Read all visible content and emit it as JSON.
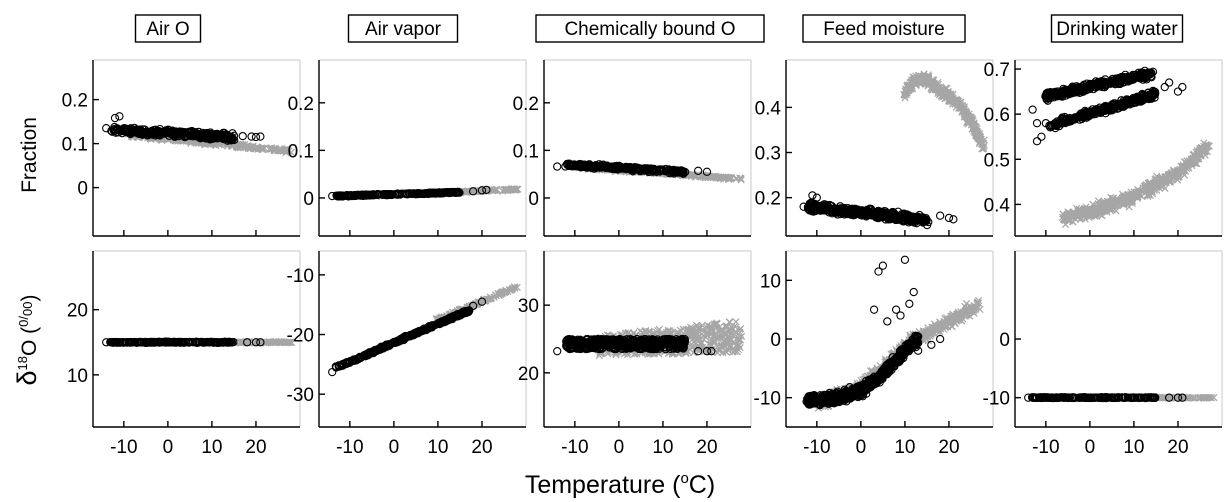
{
  "figure": {
    "xlabel": "Temperature (",
    "xlabel_sup": "o",
    "xlabel_unit": "C)",
    "ylabel_top": "Fraction",
    "ylabel_bottom_main": "δ",
    "ylabel_bottom_sup": "18",
    "ylabel_bottom_o": "O (",
    "ylabel_bottom_frac_num": "0",
    "ylabel_bottom_frac_den": "00",
    "ylabel_bottom_close": ")",
    "colors": {
      "observed": "#000000",
      "projected": "#a6a6a6"
    },
    "markers": {
      "observed": "circle",
      "projected": "cross"
    }
  },
  "chart_data": [
    {
      "type": "scatter",
      "title": "Air O",
      "row": "Fraction",
      "xlim": [
        -17,
        30
      ],
      "ylim": [
        -0.11,
        0.29
      ],
      "xticks": [
        -10,
        0,
        10,
        20
      ],
      "yticks": [
        0,
        0.1,
        0.2
      ],
      "ytick_labels": [
        "0",
        "0.1",
        "0.2"
      ],
      "shapes": [
        {
          "series": "projected",
          "kind": "line",
          "x0": -8,
          "x1": 28,
          "y0": 0.118,
          "y1": 0.083,
          "spread": 0.006,
          "n": 240
        },
        {
          "series": "observed",
          "kind": "line",
          "x0": -13,
          "x1": 15,
          "y0": 0.133,
          "y1": 0.113,
          "spread": 0.012,
          "n": 320
        },
        {
          "series": "observed",
          "kind": "list",
          "points": [
            [
              -14,
              0.135
            ],
            [
              17,
              0.117
            ],
            [
              19,
              0.116
            ],
            [
              20,
              0.115
            ],
            [
              -12,
              0.158
            ],
            [
              -11,
              0.162
            ],
            [
              21,
              0.116
            ]
          ]
        }
      ]
    },
    {
      "type": "scatter",
      "title": "Air O",
      "row": "δ18O",
      "xlim": [
        -17,
        30
      ],
      "ylim": [
        2,
        29
      ],
      "xticks": [
        -10,
        0,
        10,
        20
      ],
      "yticks": [
        10,
        20
      ],
      "ytick_labels": [
        "10",
        "20"
      ],
      "shapes": [
        {
          "series": "projected",
          "kind": "line",
          "x0": -8,
          "x1": 28,
          "y0": 15,
          "y1": 15,
          "spread": 0.15,
          "n": 200
        },
        {
          "series": "observed",
          "kind": "line",
          "x0": -13,
          "x1": 15,
          "y0": 15,
          "y1": 15,
          "spread": 0.12,
          "n": 200
        },
        {
          "series": "observed",
          "kind": "list",
          "points": [
            [
              -14,
              15
            ],
            [
              18,
              15
            ],
            [
              20,
              15
            ],
            [
              21,
              15
            ]
          ]
        }
      ]
    },
    {
      "type": "scatter",
      "title": "Air vapor",
      "row": "Fraction",
      "xlim": [
        -17,
        30
      ],
      "ylim": [
        -0.08,
        0.29
      ],
      "xticks": [
        -10,
        0,
        10,
        20
      ],
      "yticks": [
        0,
        0.1,
        0.2
      ],
      "ytick_labels": [
        "0",
        "0.1",
        "0.2"
      ],
      "shapes": [
        {
          "series": "projected",
          "kind": "line",
          "x0": -8,
          "x1": 28,
          "y0": 0.004,
          "y1": 0.018,
          "spread": 0.003,
          "n": 220
        },
        {
          "series": "observed",
          "kind": "line",
          "x0": -13,
          "x1": 15,
          "y0": 0.004,
          "y1": 0.012,
          "spread": 0.002,
          "n": 260
        },
        {
          "series": "observed",
          "kind": "list",
          "points": [
            [
              -14,
              0.004
            ],
            [
              18,
              0.014
            ],
            [
              20,
              0.016
            ],
            [
              21,
              0.017
            ]
          ]
        }
      ]
    },
    {
      "type": "scatter",
      "title": "Air vapor",
      "row": "δ18O",
      "xlim": [
        -17,
        30
      ],
      "ylim": [
        -35.5,
        -6
      ],
      "xticks": [
        -10,
        0,
        10,
        20
      ],
      "yticks": [
        -30,
        -20,
        -10
      ],
      "ytick_labels": [
        "-30",
        "-20",
        "-10"
      ],
      "shapes": [
        {
          "series": "projected",
          "kind": "line",
          "x0": 10,
          "x1": 28,
          "y0": -17.5,
          "y1": -12,
          "spread": 0.3,
          "n": 120
        },
        {
          "series": "observed",
          "kind": "line",
          "x0": -13,
          "x1": 17,
          "y0": -25.5,
          "y1": -16,
          "spread": 0.25,
          "n": 320
        },
        {
          "series": "observed",
          "kind": "list",
          "points": [
            [
              -14,
              -26.3
            ],
            [
              18,
              -15.2
            ],
            [
              20,
              -14.5
            ]
          ]
        }
      ]
    },
    {
      "type": "scatter",
      "title": "Chemically bound O",
      "row": "Fraction",
      "xlim": [
        -17,
        30
      ],
      "ylim": [
        -0.08,
        0.29
      ],
      "xticks": [
        -10,
        0,
        10,
        20
      ],
      "yticks": [
        0,
        0.1,
        0.2
      ],
      "ytick_labels": [
        "0",
        "0.1",
        "0.2"
      ],
      "shapes": [
        {
          "series": "projected",
          "kind": "line",
          "x0": -8,
          "x1": 28,
          "y0": 0.064,
          "y1": 0.04,
          "spread": 0.004,
          "n": 220
        },
        {
          "series": "observed",
          "kind": "line",
          "x0": -12,
          "x1": 15,
          "y0": 0.07,
          "y1": 0.055,
          "spread": 0.006,
          "n": 300
        },
        {
          "series": "observed",
          "kind": "list",
          "points": [
            [
              -14,
              0.066
            ],
            [
              18,
              0.057
            ],
            [
              20,
              0.055
            ]
          ]
        }
      ]
    },
    {
      "type": "scatter",
      "title": "Chemically bound O",
      "row": "δ18O",
      "xlim": [
        -17,
        30
      ],
      "ylim": [
        12,
        38
      ],
      "xticks": [
        -10,
        0,
        10,
        20
      ],
      "yticks": [
        20,
        30
      ],
      "ytick_labels": [
        "20",
        "30"
      ],
      "shapes": [
        {
          "series": "projected",
          "kind": "band",
          "x0": -5,
          "x1": 28,
          "ya0": 22.5,
          "yb0": 25.5,
          "ya1": 23,
          "yb1": 27.8,
          "n": 520
        },
        {
          "series": "observed",
          "kind": "rect",
          "x0": -12,
          "x1": 15,
          "y0": 23.5,
          "y1": 25,
          "n": 480
        },
        {
          "series": "observed",
          "kind": "list",
          "points": [
            [
              -14,
              23.2
            ],
            [
              18,
              23.2
            ],
            [
              20,
              23.2
            ],
            [
              21,
              23.2
            ]
          ]
        }
      ]
    },
    {
      "type": "scatter",
      "title": "Feed moisture",
      "row": "Fraction",
      "xlim": [
        -17,
        30
      ],
      "ylim": [
        0.115,
        0.505
      ],
      "xticks": [
        -10,
        0,
        10,
        20
      ],
      "yticks": [
        0.2,
        0.3,
        0.4
      ],
      "ytick_labels": [
        "0.2",
        "0.3",
        "0.4"
      ],
      "shapes": [
        {
          "series": "projected",
          "kind": "curve",
          "pts": [
            [
              10,
              0.43
            ],
            [
              12,
              0.46
            ],
            [
              15,
              0.46
            ],
            [
              18,
              0.44
            ],
            [
              22,
              0.41
            ],
            [
              25,
              0.37
            ],
            [
              28,
              0.31
            ]
          ],
          "spread": 0.018,
          "n": 420
        },
        {
          "series": "observed",
          "kind": "line",
          "x0": -12,
          "x1": 15,
          "y0": 0.18,
          "y1": 0.15,
          "spread": 0.013,
          "n": 460
        },
        {
          "series": "observed",
          "kind": "list",
          "points": [
            [
              -13,
              0.18
            ],
            [
              -11,
              0.205
            ],
            [
              -10,
              0.2
            ],
            [
              18,
              0.16
            ],
            [
              20,
              0.155
            ],
            [
              21,
              0.152
            ]
          ]
        }
      ]
    },
    {
      "type": "scatter",
      "title": "Feed moisture",
      "row": "δ18O",
      "xlim": [
        -17,
        30
      ],
      "ylim": [
        -15,
        15
      ],
      "xticks": [
        -10,
        0,
        10,
        20
      ],
      "yticks": [
        -10,
        0,
        10
      ],
      "ytick_labels": [
        "-10",
        "0",
        "10"
      ],
      "shapes": [
        {
          "series": "projected",
          "kind": "curve",
          "pts": [
            [
              -10,
              -11
            ],
            [
              0,
              -8
            ],
            [
              5,
              -5
            ],
            [
              10,
              -1
            ],
            [
              15,
              1
            ],
            [
              20,
              3
            ],
            [
              27,
              6
            ]
          ],
          "spread": 1.5,
          "n": 520
        },
        {
          "series": "observed",
          "kind": "curve",
          "pts": [
            [
              -12,
              -10.5
            ],
            [
              -5,
              -10
            ],
            [
              0,
              -8.8
            ],
            [
              5,
              -6
            ],
            [
              10,
              -2
            ],
            [
              13,
              0
            ]
          ],
          "spread": 1.3,
          "n": 760
        },
        {
          "series": "observed",
          "kind": "list",
          "points": [
            [
              4,
              11.5
            ],
            [
              5,
              12.5
            ],
            [
              10,
              13.5
            ],
            [
              8,
              5
            ],
            [
              12,
              8
            ],
            [
              9,
              4
            ],
            [
              11,
              6
            ],
            [
              6,
              3
            ],
            [
              13,
              -2
            ],
            [
              16,
              -1
            ],
            [
              18,
              0
            ],
            [
              3,
              5
            ]
          ]
        }
      ]
    },
    {
      "type": "scatter",
      "title": "Drinking water",
      "row": "Fraction",
      "xlim": [
        -17,
        30
      ],
      "ylim": [
        0.33,
        0.72
      ],
      "xticks": [
        -10,
        0,
        10,
        20
      ],
      "yticks": [
        0.4,
        0.5,
        0.6,
        0.7
      ],
      "ytick_labels": [
        "0.4",
        "0.5",
        "0.6",
        "0.7"
      ],
      "shapes": [
        {
          "series": "projected",
          "kind": "curve",
          "pts": [
            [
              -6,
              0.37
            ],
            [
              -2,
              0.38
            ],
            [
              2,
              0.39
            ],
            [
              8,
              0.41
            ],
            [
              14,
              0.44
            ],
            [
              20,
              0.47
            ],
            [
              27,
              0.53
            ]
          ],
          "spread": 0.022,
          "n": 520
        },
        {
          "series": "observed",
          "kind": "line",
          "x0": -10,
          "x1": 14,
          "y0": 0.64,
          "y1": 0.69,
          "spread": 0.012,
          "n": 330
        },
        {
          "series": "observed",
          "kind": "line",
          "x0": -9,
          "x1": 15,
          "y0": 0.575,
          "y1": 0.645,
          "spread": 0.012,
          "n": 280
        },
        {
          "series": "observed",
          "kind": "list",
          "points": [
            [
              -13,
              0.61
            ],
            [
              -12,
              0.54
            ],
            [
              -11,
              0.55
            ],
            [
              -12,
              0.58
            ],
            [
              17,
              0.66
            ],
            [
              18,
              0.67
            ],
            [
              20,
              0.65
            ],
            [
              21,
              0.66
            ],
            [
              -10,
              0.58
            ]
          ]
        }
      ]
    },
    {
      "type": "scatter",
      "title": "Drinking water",
      "row": "δ18O",
      "xlim": [
        -17,
        30
      ],
      "ylim": [
        -15,
        15
      ],
      "xticks": [
        -10,
        0,
        10,
        20
      ],
      "yticks": [
        -10,
        0
      ],
      "ytick_labels": [
        "-10",
        "0"
      ],
      "shapes": [
        {
          "series": "projected",
          "kind": "line",
          "x0": -8,
          "x1": 28,
          "y0": -10,
          "y1": -10,
          "spread": 0.1,
          "n": 200
        },
        {
          "series": "observed",
          "kind": "line",
          "x0": -13,
          "x1": 15,
          "y0": -10,
          "y1": -10,
          "spread": 0.1,
          "n": 220
        },
        {
          "series": "observed",
          "kind": "list",
          "points": [
            [
              -14,
              -10
            ],
            [
              18,
              -10
            ],
            [
              20,
              -10
            ],
            [
              21,
              -10
            ]
          ]
        }
      ]
    }
  ]
}
